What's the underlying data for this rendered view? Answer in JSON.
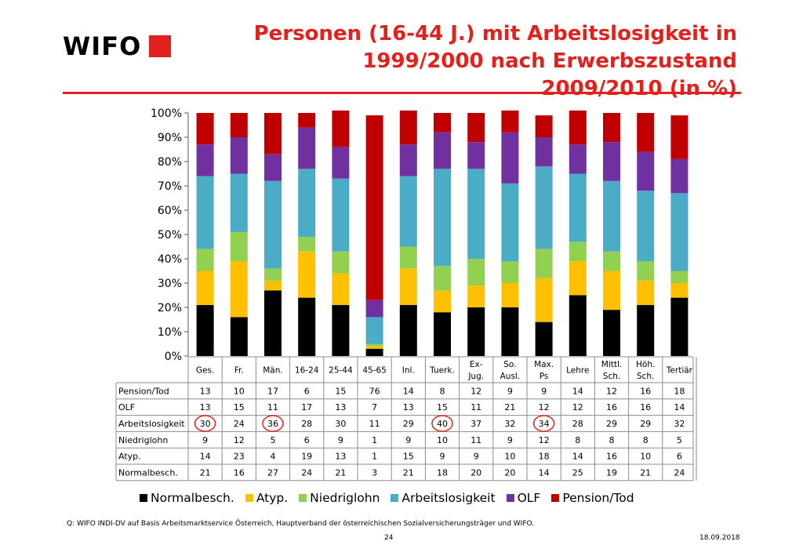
{
  "logo": {
    "text": "WIFO",
    "color": "#e2211c"
  },
  "title": "Personen (16-44 J.) mit Arbeitslosigkeit in 1999/2000 nach Erwerbszustand 2009/2010 (in %)",
  "colors": {
    "accent": "#e2211c"
  },
  "chart_data": {
    "type": "bar",
    "stacked": true,
    "categories": [
      "Ges.",
      "Fr.",
      "Män.",
      "16-24",
      "25-44",
      "45-65",
      "Inl.",
      "Tuerk.",
      "Ex-\nJug.",
      "So.\nAusl.",
      "Max.\nPs",
      "Lehre",
      "Mittl.\nSch.",
      "Höh.\nSch.",
      "Tertiär"
    ],
    "series": [
      {
        "name": "Normalbesch.",
        "color": "#000000",
        "values": [
          21,
          16,
          27,
          24,
          21,
          3,
          21,
          18,
          20,
          20,
          14,
          25,
          19,
          21,
          24
        ]
      },
      {
        "name": "Atyp.",
        "color": "#ffc000",
        "values": [
          14,
          23,
          4,
          19,
          13,
          1,
          15,
          9,
          9,
          10,
          18,
          14,
          16,
          10,
          6
        ]
      },
      {
        "name": "Niedriglohn",
        "color": "#92d050",
        "values": [
          9,
          12,
          5,
          6,
          9,
          1,
          9,
          10,
          11,
          9,
          12,
          8,
          8,
          8,
          5
        ]
      },
      {
        "name": "Arbeitslosigkeit",
        "color": "#4bacc6",
        "values": [
          30,
          24,
          36,
          28,
          30,
          11,
          29,
          40,
          37,
          32,
          34,
          28,
          29,
          29,
          32
        ]
      },
      {
        "name": "OLF",
        "color": "#7030a0",
        "values": [
          13,
          15,
          11,
          17,
          13,
          7,
          13,
          15,
          11,
          21,
          12,
          12,
          16,
          16,
          14
        ]
      },
      {
        "name": "Pension/Tod",
        "color": "#c00000",
        "values": [
          13,
          10,
          17,
          6,
          15,
          76,
          14,
          8,
          12,
          9,
          9,
          14,
          12,
          16,
          18
        ]
      }
    ],
    "ylim": [
      0,
      100
    ],
    "yticks": [
      "0%",
      "10%",
      "20%",
      "30%",
      "40%",
      "50%",
      "60%",
      "70%",
      "80%",
      "90%",
      "100%"
    ],
    "table_rows": [
      {
        "label": "Pension/Tod",
        "series": 5
      },
      {
        "label": "OLF",
        "series": 4
      },
      {
        "label": "Arbeitslosigkeit",
        "series": 3
      },
      {
        "label": "Niedriglohn",
        "series": 2
      },
      {
        "label": "Atyp.",
        "series": 1
      },
      {
        "label": "Normalbesch.",
        "series": 0
      }
    ],
    "circled": [
      {
        "series": 3,
        "category": 0
      },
      {
        "series": 3,
        "category": 2
      },
      {
        "series": 3,
        "category": 7
      },
      {
        "series": 3,
        "category": 10
      }
    ],
    "legend_order": [
      0,
      1,
      2,
      3,
      4,
      5
    ],
    "legend_position": "bottom"
  },
  "footer": {
    "source": "Q: WIFO INDI-DV auf Basis Arbeitsmarktservice Österreich, Hauptverband der österreichischen Sozialversicherungsträger und WIFO.",
    "page": "24",
    "date": "18.09.2018"
  }
}
